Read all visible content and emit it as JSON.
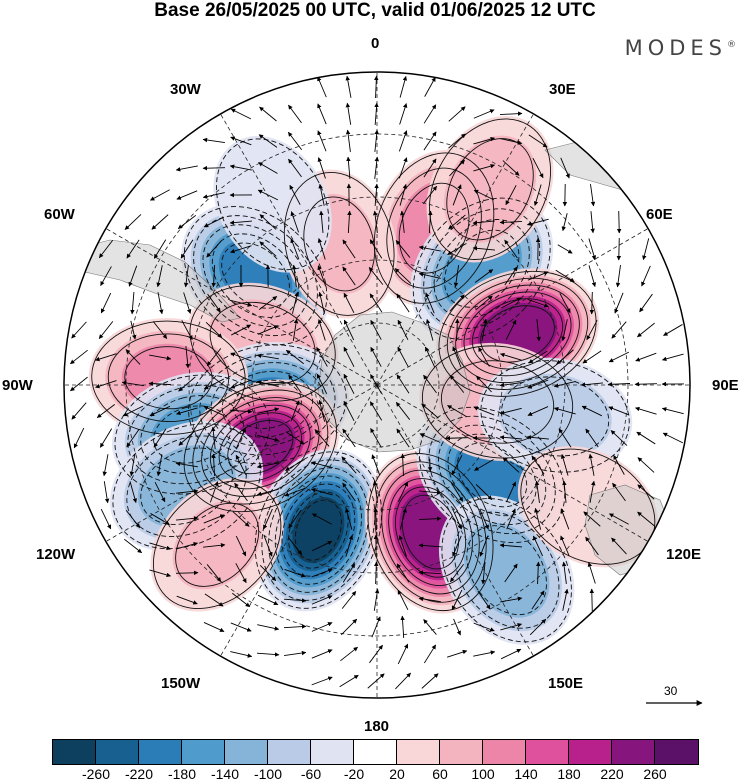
{
  "title": "Base 26/05/2025 00 UTC, valid 01/06/2025 12 UTC",
  "brand": "MODES",
  "brand_mark": "®",
  "longitude_labels": {
    "top": "0",
    "top_right": "30E",
    "upper_right": "60E",
    "right": "90E",
    "lower_right": "120E",
    "bottom_right": "150E",
    "bottom": "180",
    "bottom_left": "150W",
    "lower_left": "120W",
    "left": "90W",
    "upper_left": "60W",
    "top_left": "30W"
  },
  "vector_scale": {
    "value": "30"
  },
  "colorbar": {
    "ticks": [
      "-260",
      "-220",
      "-180",
      "-140",
      "-100",
      "-60",
      "-20",
      "20",
      "60",
      "100",
      "140",
      "180",
      "220",
      "260"
    ],
    "colors": [
      "#0d3f5f",
      "#17608f",
      "#2b7db8",
      "#4f9bcc",
      "#86b4d9",
      "#b9cbe6",
      "#dfe3f2",
      "#ffffff",
      "#f9d7d8",
      "#f4b4bf",
      "#ed85a9",
      "#e0519d",
      "#b8208b",
      "#86157d",
      "#5c1169"
    ]
  },
  "anomaly_centers": [
    {
      "lon": 20,
      "lat": -42,
      "value": 120
    },
    {
      "lon": -48,
      "lat": -43,
      "value": -200
    },
    {
      "lon": -15,
      "lat": -48,
      "value": 60
    },
    {
      "lon": 42,
      "lat": -45,
      "value": -170
    },
    {
      "lon": 70,
      "lat": -47,
      "value": 250
    },
    {
      "lon": -70,
      "lat": -55,
      "value": 80
    },
    {
      "lon": -100,
      "lat": -58,
      "value": -180
    },
    {
      "lon": -88,
      "lat": -30,
      "value": 110
    },
    {
      "lon": -105,
      "lat": -35,
      "value": -150
    },
    {
      "lon": -118,
      "lat": -52,
      "value": 230
    },
    {
      "lon": -118,
      "lat": -28,
      "value": -130
    },
    {
      "lon": -158,
      "lat": -45,
      "value": -260
    },
    {
      "lon": 160,
      "lat": -45,
      "value": 250
    },
    {
      "lon": 128,
      "lat": -48,
      "value": -200
    },
    {
      "lon": 98,
      "lat": -55,
      "value": 90
    },
    {
      "lon": 100,
      "lat": -38,
      "value": -80
    },
    {
      "lon": 145,
      "lat": -25,
      "value": -130
    },
    {
      "lon": -135,
      "lat": -25,
      "value": 60
    },
    {
      "lon": 30,
      "lat": -25,
      "value": 80
    },
    {
      "lon": -30,
      "lat": -30,
      "value": -40
    },
    {
      "lon": 120,
      "lat": -20,
      "value": 50
    }
  ]
}
